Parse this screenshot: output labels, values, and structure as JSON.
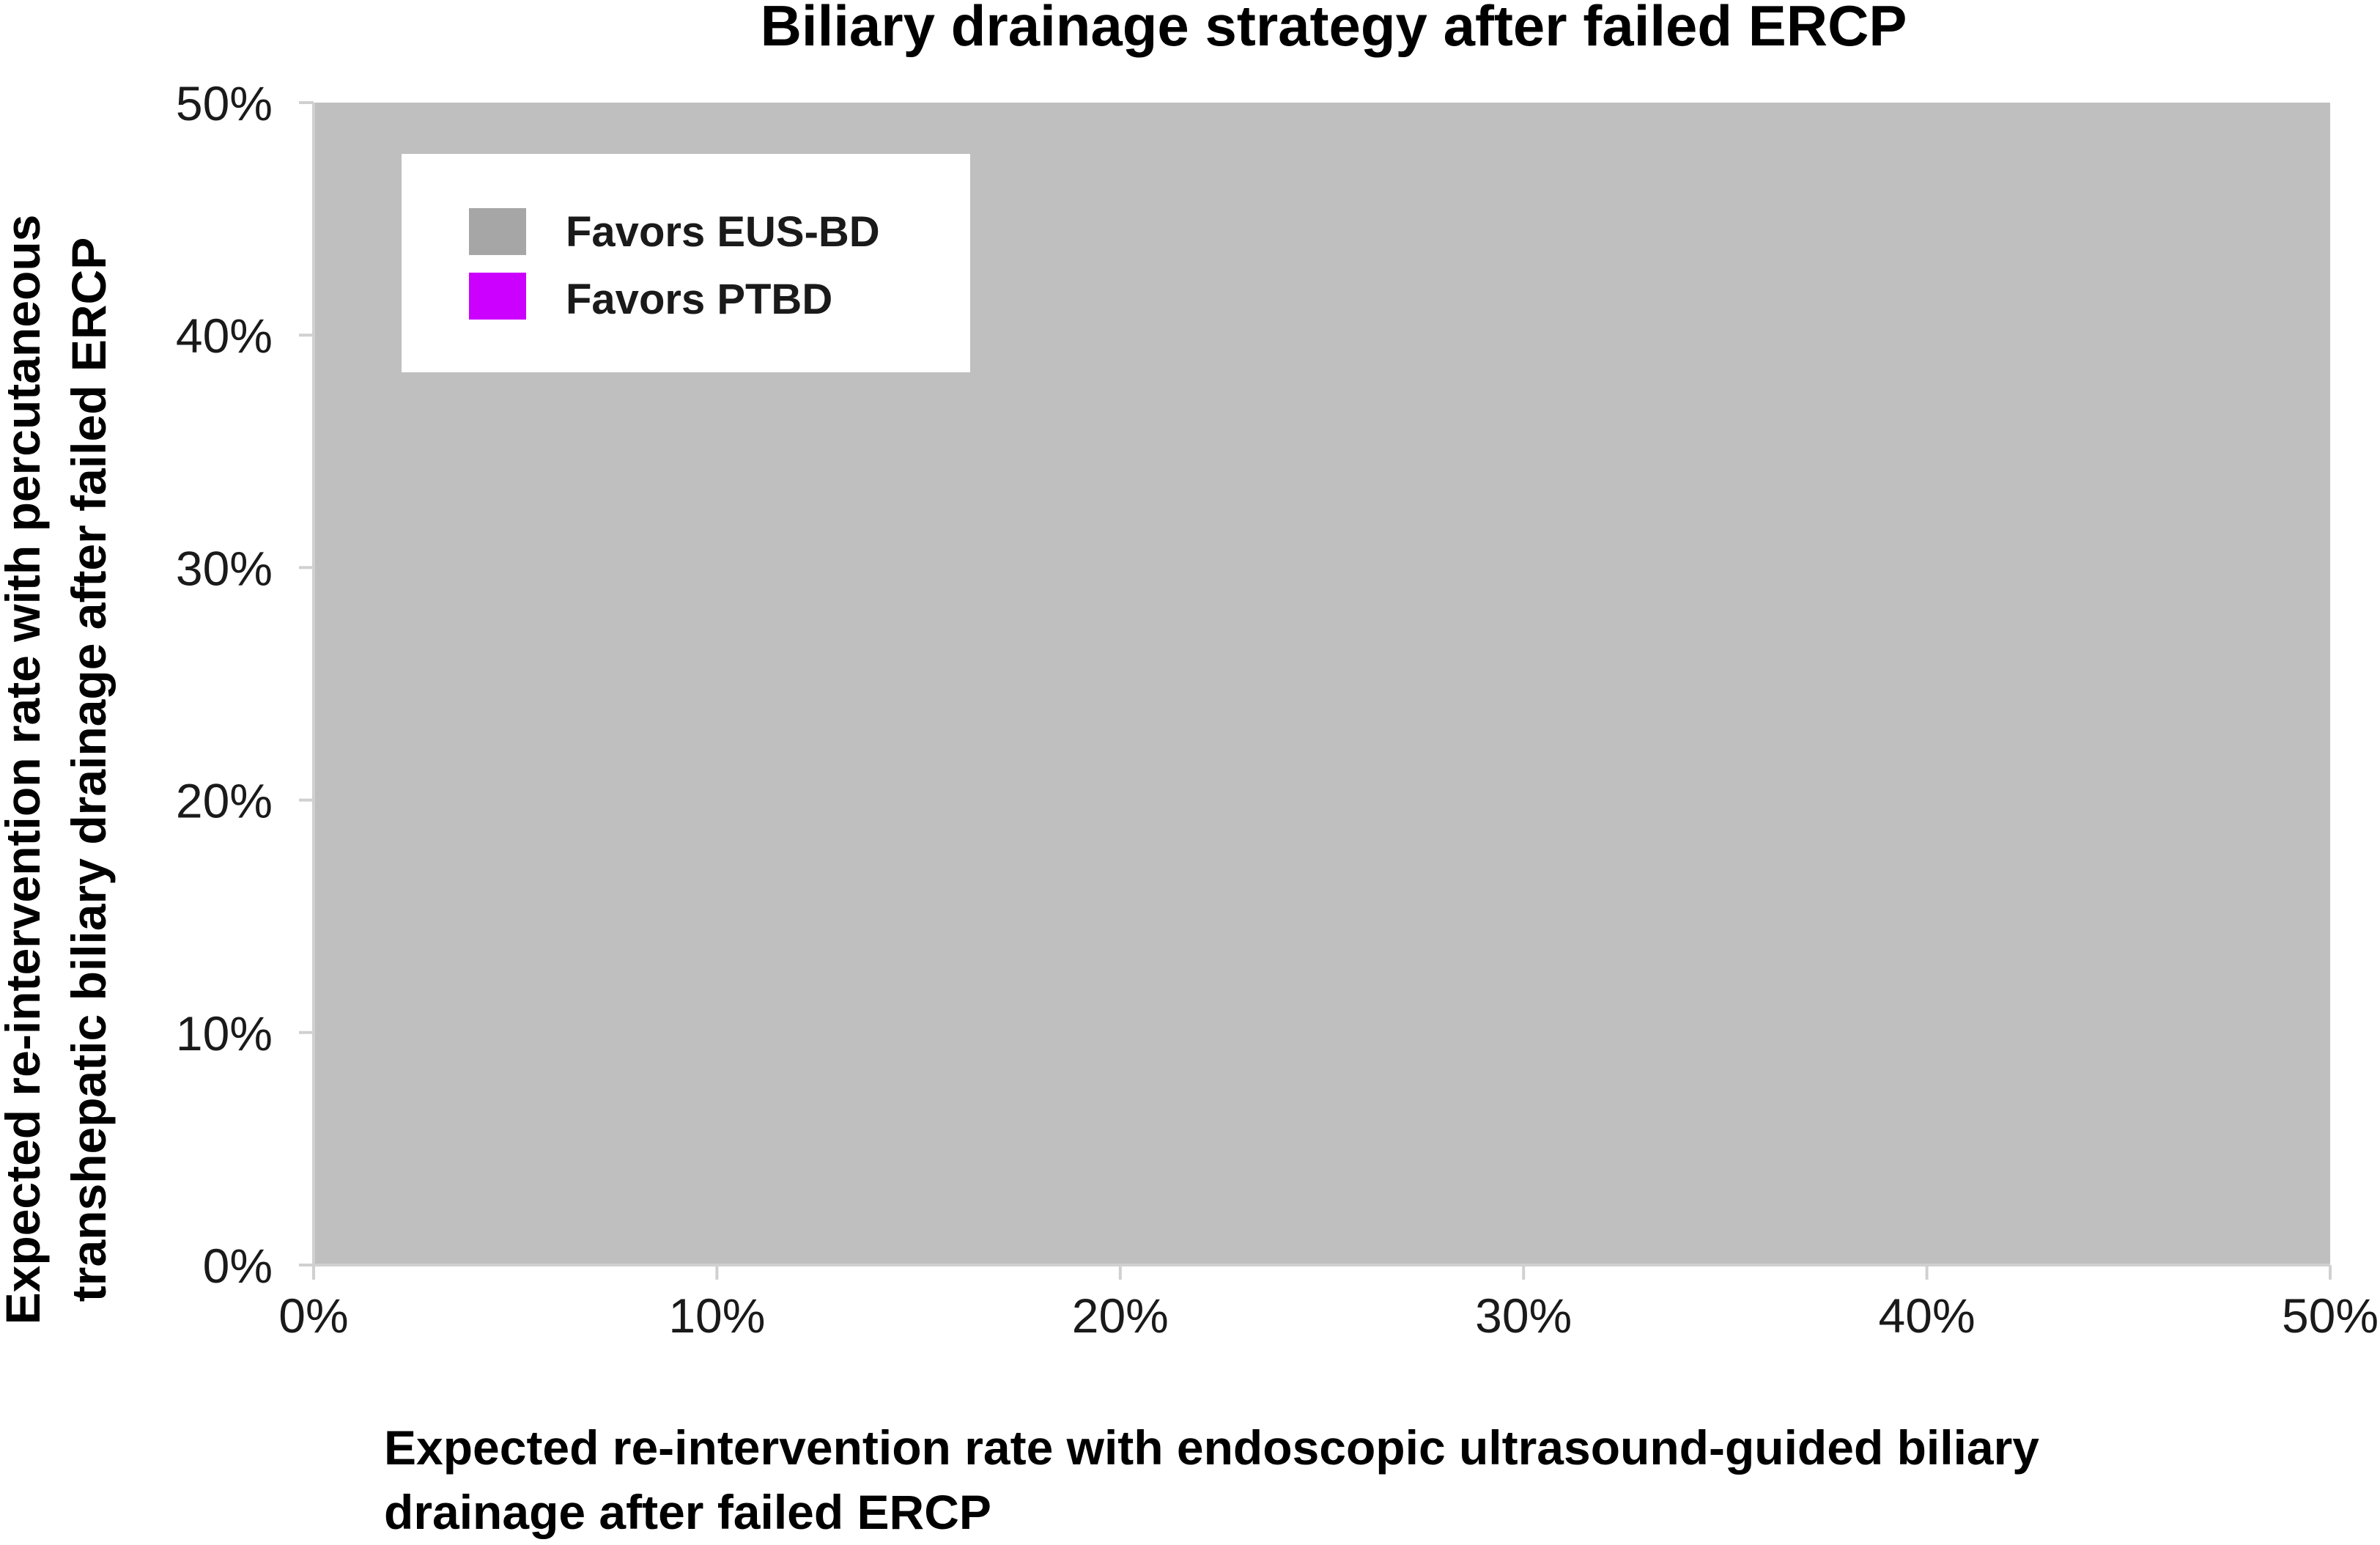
{
  "chart_data": {
    "type": "area",
    "title": "Biliary drainage strategy after failed ERCP",
    "xlabel": [
      "Expected re-intervention rate with endoscopic ultrasound-guided biliary",
      "drainage after failed ERCP"
    ],
    "ylabel": [
      "Expected re-intervention rate with percutaneous",
      "transhepatic biliary drainage after failed ERCP"
    ],
    "xlim": [
      0,
      0.5
    ],
    "ylim": [
      0,
      0.5
    ],
    "x_ticks": [
      0,
      0.1,
      0.2,
      0.3,
      0.4,
      0.5
    ],
    "y_ticks": [
      0,
      0.1,
      0.2,
      0.3,
      0.4,
      0.5
    ],
    "x_tick_labels": [
      "0%",
      "10%",
      "20%",
      "30%",
      "40%",
      "50%"
    ],
    "y_tick_labels": [
      "0%",
      "10%",
      "20%",
      "30%",
      "40%",
      "50%"
    ],
    "grid": false,
    "legend_position": "top-left",
    "series": [
      {
        "name": "Favors EUS-BD",
        "color": "#bfbfbf",
        "legend_color": "#a6a6a6",
        "regions": [
          {
            "x": [
              0,
              0.5
            ],
            "y": [
              0,
              0.5
            ]
          }
        ]
      },
      {
        "name": "Favors PTBD",
        "color": "#cc00ff",
        "legend_color": "#cc00ff",
        "regions": []
      }
    ],
    "colors": {
      "axis": "#d0d0d0",
      "text": "#1a1a1a",
      "background": "#ffffff"
    }
  }
}
